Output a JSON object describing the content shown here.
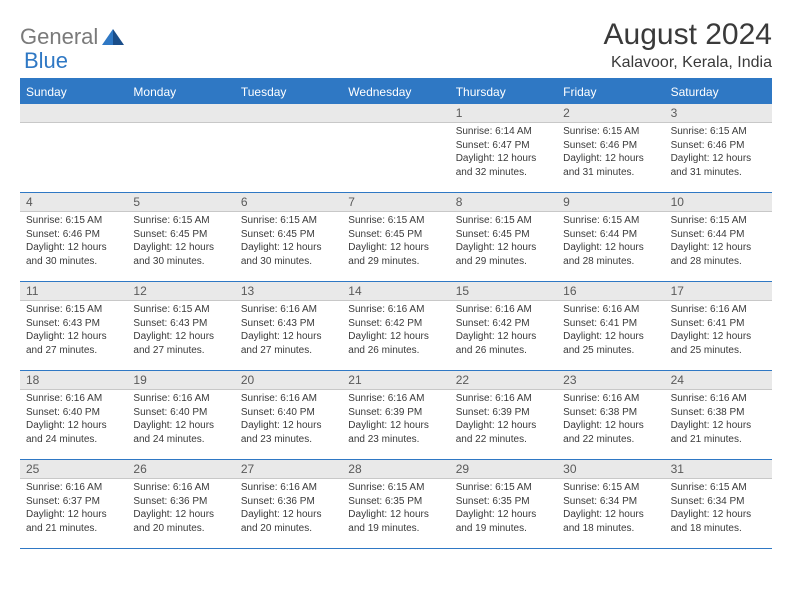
{
  "brand": {
    "part1": "General",
    "part2": "Blue"
  },
  "title": "August 2024",
  "location": "Kalavoor, Kerala, India",
  "weekdays": [
    "Sunday",
    "Monday",
    "Tuesday",
    "Wednesday",
    "Thursday",
    "Friday",
    "Saturday"
  ],
  "colors": {
    "accent": "#2f78c4",
    "strip": "#e9e9e9",
    "text": "#3a3a3a",
    "logo_gray": "#7a7a7a"
  },
  "weeks": [
    [
      {
        "empty": true
      },
      {
        "empty": true
      },
      {
        "empty": true
      },
      {
        "empty": true
      },
      {
        "n": "1",
        "sunrise": "6:14 AM",
        "sunset": "6:47 PM",
        "daylight": "12 hours and 32 minutes."
      },
      {
        "n": "2",
        "sunrise": "6:15 AM",
        "sunset": "6:46 PM",
        "daylight": "12 hours and 31 minutes."
      },
      {
        "n": "3",
        "sunrise": "6:15 AM",
        "sunset": "6:46 PM",
        "daylight": "12 hours and 31 minutes."
      }
    ],
    [
      {
        "n": "4",
        "sunrise": "6:15 AM",
        "sunset": "6:46 PM",
        "daylight": "12 hours and 30 minutes."
      },
      {
        "n": "5",
        "sunrise": "6:15 AM",
        "sunset": "6:45 PM",
        "daylight": "12 hours and 30 minutes."
      },
      {
        "n": "6",
        "sunrise": "6:15 AM",
        "sunset": "6:45 PM",
        "daylight": "12 hours and 30 minutes."
      },
      {
        "n": "7",
        "sunrise": "6:15 AM",
        "sunset": "6:45 PM",
        "daylight": "12 hours and 29 minutes."
      },
      {
        "n": "8",
        "sunrise": "6:15 AM",
        "sunset": "6:45 PM",
        "daylight": "12 hours and 29 minutes."
      },
      {
        "n": "9",
        "sunrise": "6:15 AM",
        "sunset": "6:44 PM",
        "daylight": "12 hours and 28 minutes."
      },
      {
        "n": "10",
        "sunrise": "6:15 AM",
        "sunset": "6:44 PM",
        "daylight": "12 hours and 28 minutes."
      }
    ],
    [
      {
        "n": "11",
        "sunrise": "6:15 AM",
        "sunset": "6:43 PM",
        "daylight": "12 hours and 27 minutes."
      },
      {
        "n": "12",
        "sunrise": "6:15 AM",
        "sunset": "6:43 PM",
        "daylight": "12 hours and 27 minutes."
      },
      {
        "n": "13",
        "sunrise": "6:16 AM",
        "sunset": "6:43 PM",
        "daylight": "12 hours and 27 minutes."
      },
      {
        "n": "14",
        "sunrise": "6:16 AM",
        "sunset": "6:42 PM",
        "daylight": "12 hours and 26 minutes."
      },
      {
        "n": "15",
        "sunrise": "6:16 AM",
        "sunset": "6:42 PM",
        "daylight": "12 hours and 26 minutes."
      },
      {
        "n": "16",
        "sunrise": "6:16 AM",
        "sunset": "6:41 PM",
        "daylight": "12 hours and 25 minutes."
      },
      {
        "n": "17",
        "sunrise": "6:16 AM",
        "sunset": "6:41 PM",
        "daylight": "12 hours and 25 minutes."
      }
    ],
    [
      {
        "n": "18",
        "sunrise": "6:16 AM",
        "sunset": "6:40 PM",
        "daylight": "12 hours and 24 minutes."
      },
      {
        "n": "19",
        "sunrise": "6:16 AM",
        "sunset": "6:40 PM",
        "daylight": "12 hours and 24 minutes."
      },
      {
        "n": "20",
        "sunrise": "6:16 AM",
        "sunset": "6:40 PM",
        "daylight": "12 hours and 23 minutes."
      },
      {
        "n": "21",
        "sunrise": "6:16 AM",
        "sunset": "6:39 PM",
        "daylight": "12 hours and 23 minutes."
      },
      {
        "n": "22",
        "sunrise": "6:16 AM",
        "sunset": "6:39 PM",
        "daylight": "12 hours and 22 minutes."
      },
      {
        "n": "23",
        "sunrise": "6:16 AM",
        "sunset": "6:38 PM",
        "daylight": "12 hours and 22 minutes."
      },
      {
        "n": "24",
        "sunrise": "6:16 AM",
        "sunset": "6:38 PM",
        "daylight": "12 hours and 21 minutes."
      }
    ],
    [
      {
        "n": "25",
        "sunrise": "6:16 AM",
        "sunset": "6:37 PM",
        "daylight": "12 hours and 21 minutes."
      },
      {
        "n": "26",
        "sunrise": "6:16 AM",
        "sunset": "6:36 PM",
        "daylight": "12 hours and 20 minutes."
      },
      {
        "n": "27",
        "sunrise": "6:16 AM",
        "sunset": "6:36 PM",
        "daylight": "12 hours and 20 minutes."
      },
      {
        "n": "28",
        "sunrise": "6:15 AM",
        "sunset": "6:35 PM",
        "daylight": "12 hours and 19 minutes."
      },
      {
        "n": "29",
        "sunrise": "6:15 AM",
        "sunset": "6:35 PM",
        "daylight": "12 hours and 19 minutes."
      },
      {
        "n": "30",
        "sunrise": "6:15 AM",
        "sunset": "6:34 PM",
        "daylight": "12 hours and 18 minutes."
      },
      {
        "n": "31",
        "sunrise": "6:15 AM",
        "sunset": "6:34 PM",
        "daylight": "12 hours and 18 minutes."
      }
    ]
  ],
  "labels": {
    "sunrise": "Sunrise: ",
    "sunset": "Sunset: ",
    "daylight": "Daylight: "
  }
}
